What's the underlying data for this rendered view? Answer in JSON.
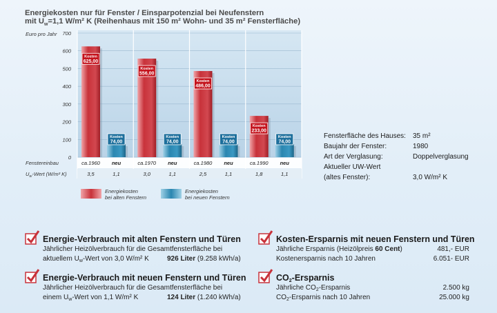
{
  "title": {
    "line1": "Energiekosten nur für Fenster / Einsparpotenzial bei Neufenstern",
    "line2": "mit Uw=1,1 W/m² K (Reihenhaus mit 150 m² Wohn- und 35 m² Fensterfläche)"
  },
  "chart_data": {
    "type": "bar",
    "ylabel": "Euro pro Jahr",
    "ylim": [
      0,
      700
    ],
    "yticks": [
      "0",
      "100",
      "200",
      "300",
      "400",
      "500",
      "600",
      "700"
    ],
    "row1_label": "Fenstereinbau",
    "row2_label": "Uw-Wert (W/m² K)",
    "groups": [
      {
        "year_old": "ca.1960",
        "old_value": 625,
        "old_label": "625,00",
        "new_value": 74,
        "new_label": "74,00",
        "uw_old": "3,5",
        "uw_new": "1,1"
      },
      {
        "year_old": "ca.1970",
        "old_value": 556,
        "old_label": "556,00",
        "new_value": 74,
        "new_label": "74,00",
        "uw_old": "3,0",
        "uw_new": "1,1"
      },
      {
        "year_old": "ca.1980",
        "old_value": 486,
        "old_label": "486,00",
        "new_value": 74,
        "new_label": "74,00",
        "uw_old": "2,5",
        "uw_new": "1,1"
      },
      {
        "year_old": "ca.1990",
        "old_value": 233,
        "old_label": "233,00",
        "new_value": 74,
        "new_label": "74,00",
        "uw_old": "1,8",
        "uw_new": "1,1"
      }
    ],
    "new_label_text": "neu",
    "badge_label": "Kosten",
    "legend": [
      {
        "name": "Energiekosten\nbei alten Fenstern",
        "line1": "Energiekosten",
        "line2": "bei alten Fenstern",
        "color": "#c8323a"
      },
      {
        "name": "Energiekosten\nbei neuen Fenstern",
        "line1": "Energiekosten",
        "line2": "bei neuen Fenstern",
        "color": "#2a86b0"
      }
    ],
    "colors": {
      "old": "#c8323a",
      "new": "#2a86b0",
      "plot_bg": "#c3dbec"
    }
  },
  "info": [
    {
      "label": "Fensterfläche des Hauses:",
      "value": "35 m²"
    },
    {
      "label": "Baujahr der Fenster:",
      "value": "1980"
    },
    {
      "label": "Art der Verglasung:",
      "value": "Doppelverglasung"
    },
    {
      "label": "Aktueller UW-Wert",
      "value": ""
    },
    {
      "label": "(altes Fenster):",
      "value": "3,0 W/m² K"
    }
  ],
  "boxes": {
    "old": {
      "heading": "Energie-Verbrauch mit alten Fenstern und Türen",
      "line1": "Jährlicher Heizölverbrauch für die Gesamtfensterfläche bei",
      "line2a": "aktuellem U",
      "line2sub": "w",
      "line2b": "-Wert von 3,0 W/m² K",
      "value_bold": "926 Liter",
      "value_rest": " (9.258 kWh/a)"
    },
    "new": {
      "heading": "Energie-Verbrauch mit neuen Fenstern und Türen",
      "line1": "Jährlicher Heizölverbrauch für die Gesamtfensterfläche bei",
      "line2a": "einem U",
      "line2sub": "w",
      "line2b": "-Wert von 1,1 W/m² K",
      "value_bold": "124 Liter",
      "value_rest": " (1.240 kWh/a)"
    },
    "cost": {
      "heading": "Kosten-Ersparnis mit neuen Fenstern und Türen",
      "line1a": "Jährliche Ersparnis (Heizölpreis ",
      "line1b": "60 Cent",
      "line1c": ")",
      "line1v": "481,- EUR",
      "line2": "Kostenersparnis nach 10 Jahren",
      "line2v": "6.051- EUR"
    },
    "co2": {
      "heading_a": "CO",
      "heading_sub": "2",
      "heading_b": "-Ersparnis",
      "line1a": "Jährliche CO",
      "line1sub": "2",
      "line1b": "-Ersparnis",
      "line1v": "2.500 kg",
      "line2a": "CO",
      "line2sub": "2",
      "line2b": "-Ersparnis nach 10 Jahren",
      "line2v": "25.000 kg"
    }
  }
}
